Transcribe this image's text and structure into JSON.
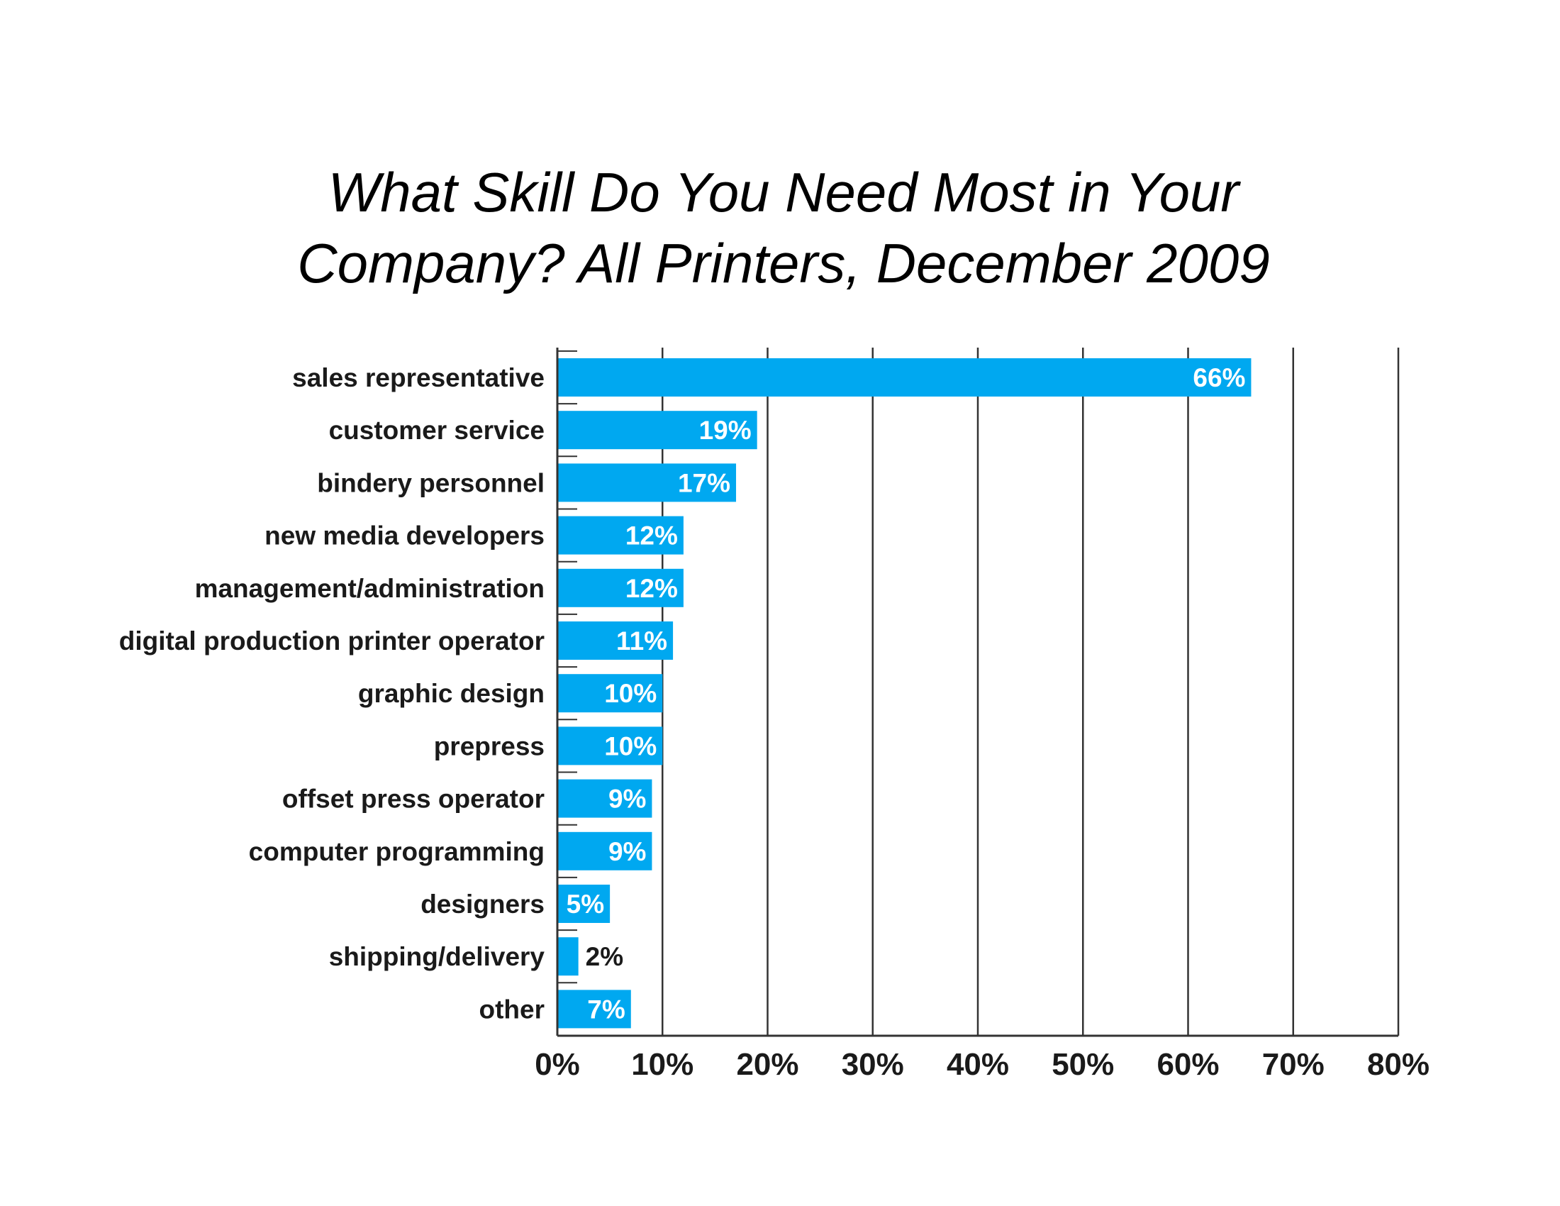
{
  "chart_data": {
    "type": "bar",
    "orientation": "horizontal",
    "title_lines": [
      "What Skill Do You Need Most in Your",
      "Company? All Printers, December 2009"
    ],
    "categories": [
      "sales representative",
      "customer service",
      "bindery personnel",
      "new media developers",
      "management/administration",
      "digital production printer operator",
      "graphic design",
      "prepress",
      "offset press operator",
      "computer programming",
      "designers",
      "shipping/delivery",
      "other"
    ],
    "values": [
      66,
      19,
      17,
      12,
      12,
      11,
      10,
      10,
      9,
      9,
      5,
      2,
      7
    ],
    "value_labels": [
      "66%",
      "19%",
      "17%",
      "12%",
      "12%",
      "11%",
      "10%",
      "10%",
      "9%",
      "9%",
      "5%",
      "2%",
      "7%"
    ],
    "xlim": [
      0,
      80
    ],
    "xticks": [
      0,
      10,
      20,
      30,
      40,
      50,
      60,
      70,
      80
    ],
    "xtick_labels": [
      "0%",
      "10%",
      "20%",
      "30%",
      "40%",
      "50%",
      "60%",
      "70%",
      "80%"
    ],
    "grid": "vertical",
    "legend": "none",
    "colors": {
      "bar": "#00a8f0",
      "grid": "#333333",
      "label_inside": "#ffffff",
      "label_outside": "#1a1a1a"
    }
  }
}
